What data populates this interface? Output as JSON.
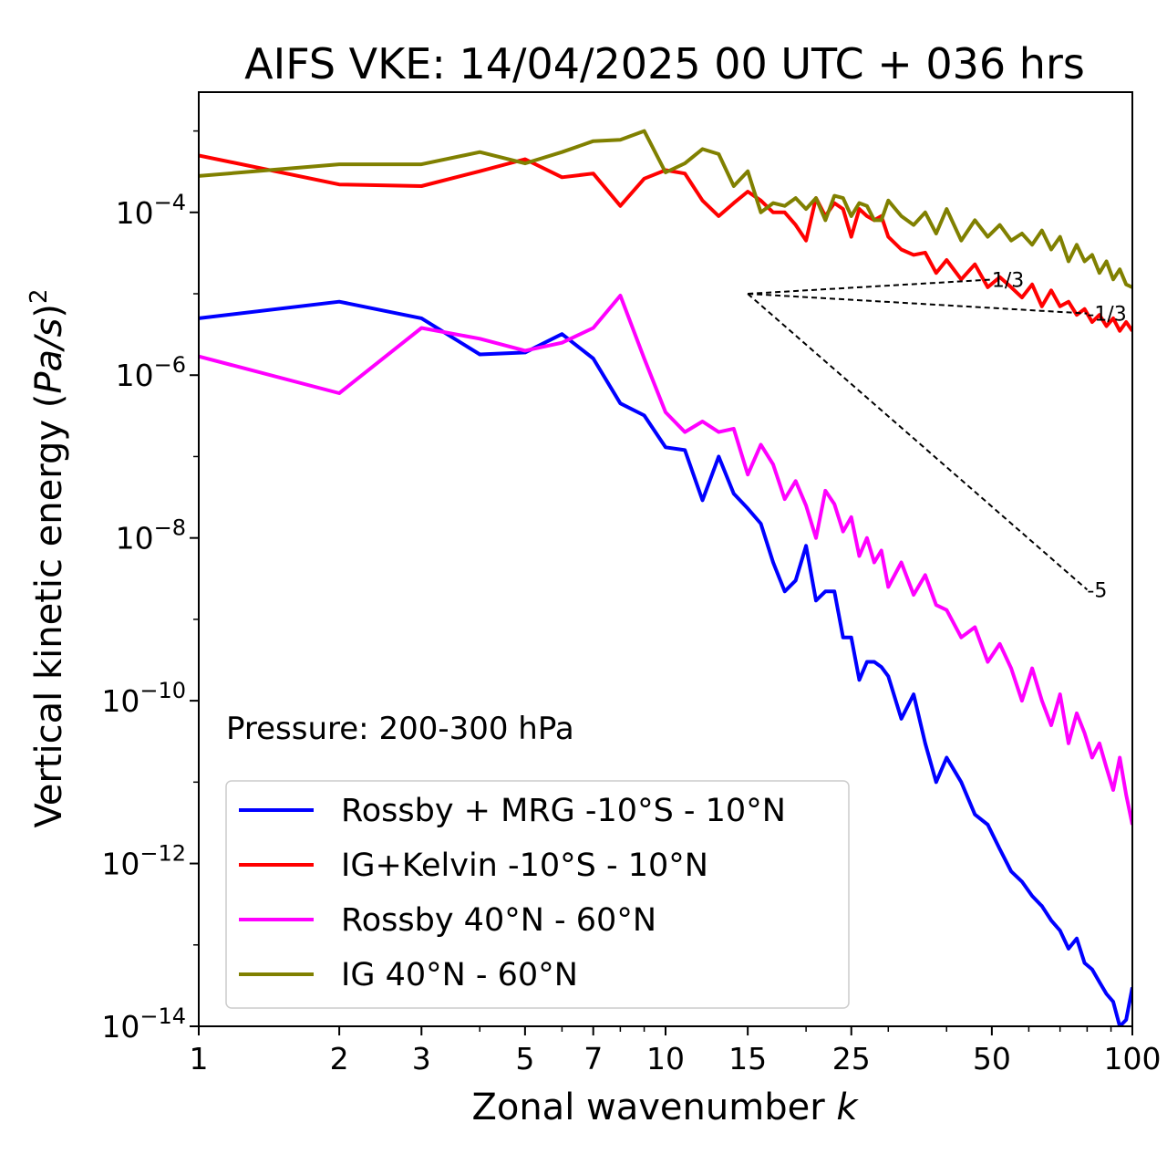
{
  "chart_data": {
    "type": "line",
    "title": "AIFS VKE: 14/04/2025 00 UTC + 036 hrs",
    "xlabel_text": "Zonal wavenumber ",
    "xlabel_italic": "k",
    "ylabel_text": "Vertical kinetic energy (",
    "ylabel_italic": "Pa/s",
    "ylabel_close": ")",
    "ylabel_sup": "2",
    "x_scale": "log",
    "y_scale": "log",
    "xlim": [
      1,
      100
    ],
    "ylim": [
      1e-14,
      0.003
    ],
    "x_ticks": [
      1,
      2,
      3,
      5,
      7,
      10,
      15,
      25,
      50,
      100
    ],
    "x_tick_labels": [
      "1",
      "2",
      "3",
      "5",
      "7",
      "10",
      "15",
      "25",
      "50",
      "100"
    ],
    "y_tick_base": "10",
    "y_ticks": [
      -14,
      -12,
      -10,
      -8,
      -6,
      -4
    ],
    "y_tick_exponents": [
      "−14",
      "−12",
      "−10",
      "−8",
      "−6",
      "−4"
    ],
    "annotation": "Pressure: 200-300 hPa",
    "legend_position": "lower-left",
    "series": [
      {
        "name": "Rossby + MRG -10°S - 10°N",
        "color": "#0000ff",
        "x": [
          1,
          2,
          3,
          4,
          5,
          6,
          7,
          8,
          9,
          10,
          11,
          12,
          13,
          14,
          15,
          16,
          17,
          18,
          19,
          20,
          21,
          22,
          23,
          24,
          25,
          26,
          27,
          28,
          29,
          30,
          32,
          34,
          36,
          38,
          40,
          43,
          46,
          49,
          52,
          55,
          58,
          61,
          64,
          67,
          70,
          73,
          76,
          79,
          82,
          85,
          88,
          91,
          94,
          97,
          100
        ],
        "y": [
          5e-06,
          8e-06,
          5e-06,
          1.8e-06,
          1.9e-06,
          3.2e-06,
          1.6e-06,
          4.5e-07,
          3.2e-07,
          1.3e-07,
          1.2e-07,
          2.9e-08,
          1e-07,
          3.5e-08,
          2.3e-08,
          1.5e-08,
          5e-09,
          2.2e-09,
          3e-09,
          8e-09,
          1.7e-09,
          2.2e-09,
          2.2e-09,
          6e-10,
          6e-10,
          1.8e-10,
          3e-10,
          3e-10,
          2.6e-10,
          2e-10,
          6e-11,
          1.2e-10,
          3e-11,
          1e-11,
          2e-11,
          1e-11,
          4e-12,
          3e-12,
          1.5e-12,
          8e-13,
          6e-13,
          4e-13,
          3e-13,
          2e-13,
          1.5e-13,
          9e-14,
          1.2e-13,
          6e-14,
          5e-14,
          3.5e-14,
          2.5e-14,
          2e-14,
          1e-14,
          1.2e-14,
          3e-14
        ]
      },
      {
        "name": "IG+Kelvin -10°S - 10°N",
        "color": "#ff0000",
        "x": [
          1,
          2,
          3,
          4,
          5,
          6,
          7,
          8,
          9,
          10,
          11,
          12,
          13,
          14,
          15,
          16,
          17,
          18,
          19,
          20,
          21,
          22,
          23,
          24,
          25,
          26,
          27,
          28,
          29,
          30,
          32,
          34,
          36,
          38,
          40,
          43,
          46,
          49,
          52,
          55,
          58,
          61,
          64,
          67,
          70,
          73,
          76,
          79,
          82,
          85,
          88,
          91,
          94,
          97,
          100
        ],
        "y": [
          0.0005,
          0.00022,
          0.00021,
          0.00032,
          0.00045,
          0.00027,
          0.0003,
          0.00012,
          0.00026,
          0.00033,
          0.0003,
          0.00014,
          9e-05,
          0.00013,
          0.00018,
          0.00014,
          0.0001,
          0.0001,
          7e-05,
          4.5e-05,
          0.00015,
          9e-05,
          0.00013,
          0.00011,
          5e-05,
          0.00011,
          9e-05,
          8e-05,
          9e-05,
          5e-05,
          3.5e-05,
          3e-05,
          3.2e-05,
          1.8e-05,
          2.6e-05,
          1.5e-05,
          2.3e-05,
          1.2e-05,
          1.6e-05,
          1.2e-05,
          9e-06,
          1.3e-05,
          7e-06,
          1.1e-05,
          7e-06,
          8e-06,
          5.5e-06,
          6.5e-06,
          4.5e-06,
          5.5e-06,
          4e-06,
          5e-06,
          3.5e-06,
          4.5e-06,
          3.5e-06
        ]
      },
      {
        "name": "Rossby 40°N - 60°N",
        "color": "#ff00ff",
        "x": [
          1,
          2,
          3,
          4,
          5,
          6,
          7,
          8,
          9,
          10,
          11,
          12,
          13,
          14,
          15,
          16,
          17,
          18,
          19,
          20,
          21,
          22,
          23,
          24,
          25,
          26,
          27,
          28,
          29,
          30,
          32,
          34,
          36,
          38,
          40,
          43,
          46,
          49,
          52,
          55,
          58,
          61,
          64,
          67,
          70,
          73,
          76,
          79,
          82,
          85,
          88,
          91,
          94,
          97,
          100
        ],
        "y": [
          1.7e-06,
          6e-07,
          3.8e-06,
          2.8e-06,
          2e-06,
          2.5e-06,
          3.8e-06,
          9.5e-06,
          1.6e-06,
          3.5e-07,
          2e-07,
          2.7e-07,
          2e-07,
          2.2e-07,
          6e-08,
          1.4e-07,
          8e-08,
          3e-08,
          5e-08,
          2.5e-08,
          1e-08,
          3.8e-08,
          2.6e-08,
          1.2e-08,
          1.8e-08,
          6e-09,
          1e-08,
          5e-09,
          7e-09,
          2.5e-09,
          5e-09,
          2e-09,
          3.5e-09,
          1.5e-09,
          1.3e-09,
          6e-10,
          8e-10,
          3e-10,
          5e-10,
          2.5e-10,
          1e-10,
          2.5e-10,
          1e-10,
          5e-11,
          1.2e-10,
          3e-11,
          7e-11,
          4e-11,
          2e-11,
          3e-11,
          1.5e-11,
          8e-12,
          2e-11,
          7e-12,
          3e-12
        ]
      },
      {
        "name": "IG 40°N - 60°N",
        "color": "#808000",
        "x": [
          1,
          2,
          3,
          4,
          5,
          6,
          7,
          8,
          9,
          10,
          11,
          12,
          13,
          14,
          15,
          16,
          17,
          18,
          19,
          20,
          21,
          22,
          23,
          24,
          25,
          26,
          27,
          28,
          29,
          30,
          32,
          34,
          36,
          38,
          40,
          43,
          46,
          49,
          52,
          55,
          58,
          61,
          64,
          67,
          70,
          73,
          76,
          79,
          82,
          85,
          88,
          91,
          94,
          97,
          100
        ],
        "y": [
          0.00028,
          0.00039,
          0.00039,
          0.00055,
          0.0004,
          0.00055,
          0.00075,
          0.00078,
          0.001,
          0.00031,
          0.0004,
          0.0006,
          0.00052,
          0.00021,
          0.00032,
          0.0001,
          0.00013,
          0.00012,
          0.00015,
          0.00011,
          0.00015,
          8e-05,
          0.00016,
          0.00015,
          9e-05,
          0.00013,
          0.00012,
          8e-05,
          8e-05,
          0.00014,
          9e-05,
          7e-05,
          0.0001,
          5.5e-05,
          0.00011,
          4.5e-05,
          8e-05,
          5e-05,
          7e-05,
          4.5e-05,
          5.5e-05,
          4e-05,
          6e-05,
          3.5e-05,
          5e-05,
          2.5e-05,
          4e-05,
          2.5e-05,
          3e-05,
          1.8e-05,
          2.5e-05,
          1.5e-05,
          2e-05,
          1.3e-05,
          1.2e-05
        ]
      }
    ],
    "reference_slopes": [
      {
        "label": "1/3",
        "slope": 0.3333
      },
      {
        "label": "-1/3",
        "slope": -0.3333
      },
      {
        "label": "-5",
        "slope": -5
      }
    ],
    "reference_origin": {
      "x": 15,
      "y": 1e-05
    }
  }
}
